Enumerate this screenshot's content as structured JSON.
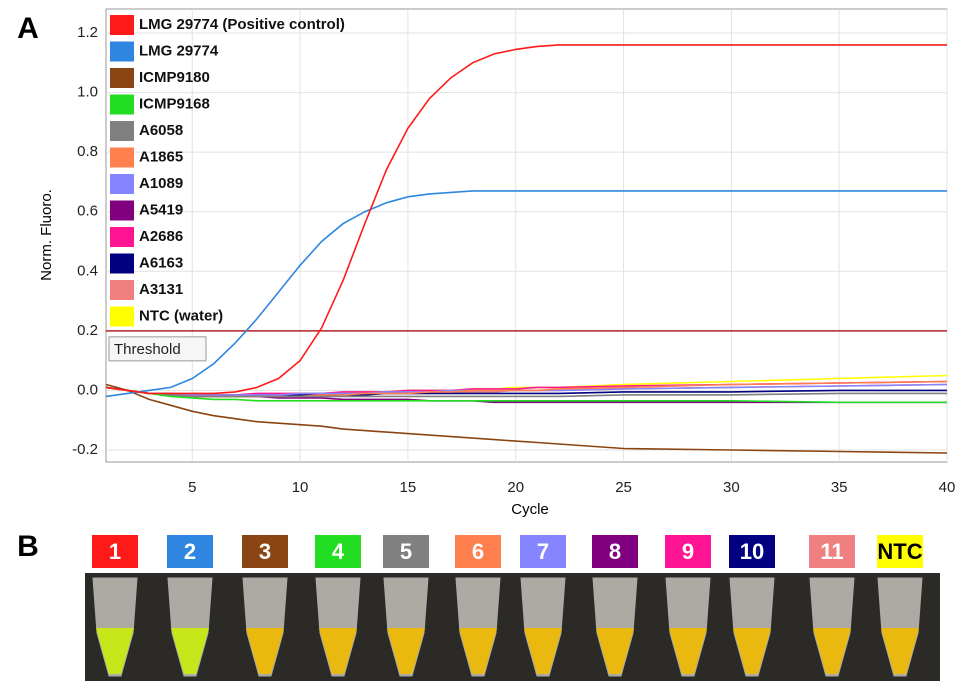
{
  "chart_data": {
    "type": "line",
    "panel_label": "A",
    "xlabel": "Cycle",
    "ylabel": "Norm. Fluoro.",
    "x": [
      1,
      2,
      3,
      4,
      5,
      6,
      7,
      8,
      9,
      10,
      11,
      12,
      13,
      14,
      15,
      16,
      17,
      18,
      19,
      20,
      21,
      22,
      25,
      30,
      35,
      40
    ],
    "xlim": [
      1,
      40
    ],
    "xticks": [
      5,
      10,
      15,
      20,
      25,
      30,
      35,
      40
    ],
    "ylim": [
      -0.24,
      1.28
    ],
    "yticks": [
      -0.2,
      {
        "value": 0,
        "label": "0.0"
      },
      0.2,
      0.4,
      0.6,
      0.8,
      {
        "value": 1,
        "label": "1.0"
      },
      1.2
    ],
    "grid": true,
    "legend": "upper left",
    "threshold": {
      "value": 0.2,
      "label": "Threshold",
      "color": "#b22222"
    },
    "series": [
      {
        "name": "LMG 29774 (Positive control)",
        "color": "#ff1a1a",
        "values": [
          0.01,
          0,
          -0.01,
          -0.01,
          -0.01,
          -0.01,
          -0.005,
          0.01,
          0.04,
          0.1,
          0.21,
          0.37,
          0.56,
          0.74,
          0.88,
          0.98,
          1.05,
          1.1,
          1.13,
          1.145,
          1.155,
          1.16,
          1.16,
          1.16,
          1.16,
          1.16
        ]
      },
      {
        "name": "LMG 29774",
        "color": "#2f86e0",
        "values": [
          -0.02,
          -0.01,
          0,
          0.01,
          0.04,
          0.09,
          0.16,
          0.24,
          0.33,
          0.42,
          0.5,
          0.56,
          0.6,
          0.63,
          0.65,
          0.66,
          0.665,
          0.67,
          0.67,
          0.67,
          0.67,
          0.67,
          0.67,
          0.67,
          0.67,
          0.67
        ]
      },
      {
        "name": "ICMP9180",
        "color": "#8b4513",
        "values": [
          0.02,
          0,
          -0.03,
          -0.05,
          -0.07,
          -0.085,
          -0.095,
          -0.105,
          -0.11,
          -0.115,
          -0.12,
          -0.13,
          -0.135,
          -0.14,
          -0.145,
          -0.15,
          -0.155,
          -0.16,
          -0.165,
          -0.17,
          -0.175,
          -0.18,
          -0.195,
          -0.2,
          -0.205,
          -0.21
        ]
      },
      {
        "name": "ICMP9168",
        "color": "#22dd22",
        "values": [
          0.01,
          0,
          -0.01,
          -0.02,
          -0.025,
          -0.03,
          -0.03,
          -0.035,
          -0.035,
          -0.035,
          -0.035,
          -0.035,
          -0.035,
          -0.035,
          -0.035,
          -0.035,
          -0.035,
          -0.035,
          -0.035,
          -0.035,
          -0.035,
          -0.035,
          -0.035,
          -0.035,
          -0.04,
          -0.04
        ]
      },
      {
        "name": "A6058",
        "color": "#808080",
        "values": [
          0.01,
          0,
          -0.01,
          -0.015,
          -0.02,
          -0.02,
          -0.02,
          -0.02,
          -0.02,
          -0.02,
          -0.02,
          -0.02,
          -0.02,
          -0.02,
          -0.02,
          -0.02,
          -0.02,
          -0.02,
          -0.02,
          -0.02,
          -0.02,
          -0.02,
          -0.015,
          -0.015,
          -0.01,
          -0.01
        ]
      },
      {
        "name": "A1865",
        "color": "#ff7f4f",
        "values": [
          0.01,
          0,
          -0.01,
          -0.015,
          -0.02,
          -0.02,
          -0.02,
          -0.02,
          -0.02,
          -0.02,
          -0.015,
          -0.015,
          -0.01,
          -0.01,
          -0.01,
          -0.005,
          -0.005,
          0,
          0,
          0,
          0,
          0.005,
          0.01,
          0.02,
          0.025,
          0.03
        ]
      },
      {
        "name": "A1089",
        "color": "#8585ff",
        "values": [
          0.01,
          0,
          -0.01,
          -0.01,
          -0.015,
          -0.015,
          -0.015,
          -0.015,
          -0.015,
          -0.01,
          -0.01,
          -0.01,
          -0.01,
          -0.005,
          -0.005,
          -0.005,
          0,
          0,
          0,
          0,
          0,
          0,
          0.005,
          0.01,
          0.015,
          0.02
        ]
      },
      {
        "name": "A5419",
        "color": "#800080",
        "values": [
          0.01,
          0,
          -0.01,
          -0.015,
          -0.02,
          -0.02,
          -0.02,
          -0.02,
          -0.025,
          -0.025,
          -0.025,
          -0.03,
          -0.03,
          -0.03,
          -0.03,
          -0.035,
          -0.035,
          -0.035,
          -0.04,
          -0.04,
          -0.04,
          -0.04,
          -0.04,
          -0.04,
          -0.04,
          -0.04
        ]
      },
      {
        "name": "A2686",
        "color": "#ff1493",
        "values": [
          0.01,
          0,
          -0.01,
          -0.015,
          -0.015,
          -0.015,
          -0.015,
          -0.01,
          -0.01,
          -0.01,
          -0.01,
          -0.005,
          -0.005,
          -0.005,
          0,
          0,
          0,
          0.005,
          0.005,
          0.005,
          0.01,
          0.01,
          0.015,
          0.02,
          0.025,
          0.03
        ]
      },
      {
        "name": "A6163",
        "color": "#000080",
        "values": [
          0.01,
          0,
          -0.01,
          -0.01,
          -0.015,
          -0.015,
          -0.015,
          -0.015,
          -0.015,
          -0.015,
          -0.015,
          -0.015,
          -0.015,
          -0.01,
          -0.01,
          -0.01,
          -0.01,
          -0.01,
          -0.01,
          -0.01,
          -0.01,
          -0.01,
          -0.005,
          -0.005,
          0,
          0
        ]
      },
      {
        "name": "A3131",
        "color": "#f08080",
        "values": [
          0.01,
          0,
          -0.01,
          -0.015,
          -0.02,
          -0.02,
          -0.02,
          -0.02,
          -0.02,
          -0.015,
          -0.015,
          -0.015,
          -0.01,
          -0.01,
          -0.01,
          -0.01,
          -0.005,
          -0.005,
          -0.005,
          0,
          0,
          0,
          0.005,
          0.01,
          0.015,
          0.02
        ]
      },
      {
        "name": "NTC (water)",
        "color": "#ffff00",
        "values": [
          0.01,
          0,
          -0.01,
          -0.015,
          -0.02,
          -0.02,
          -0.02,
          -0.015,
          -0.015,
          -0.01,
          -0.01,
          -0.01,
          -0.005,
          -0.005,
          0,
          0,
          0,
          0.005,
          0.005,
          0.01,
          0.01,
          0.01,
          0.02,
          0.03,
          0.04,
          0.05
        ]
      }
    ]
  },
  "panel_b": {
    "label": "B",
    "tubes": [
      {
        "label": "1",
        "color": "#ff1a1a"
      },
      {
        "label": "2",
        "color": "#2f86e0"
      },
      {
        "label": "3",
        "color": "#8b4513"
      },
      {
        "label": "4",
        "color": "#22dd22"
      },
      {
        "label": "5",
        "color": "#808080"
      },
      {
        "label": "6",
        "color": "#ff7f4f"
      },
      {
        "label": "7",
        "color": "#8585ff"
      },
      {
        "label": "8",
        "color": "#800080"
      },
      {
        "label": "9",
        "color": "#ff1493"
      },
      {
        "label": "10",
        "color": "#000080"
      },
      {
        "label": "11",
        "color": "#f08080"
      },
      {
        "label": "NTC",
        "color": "#ffff00"
      }
    ]
  }
}
